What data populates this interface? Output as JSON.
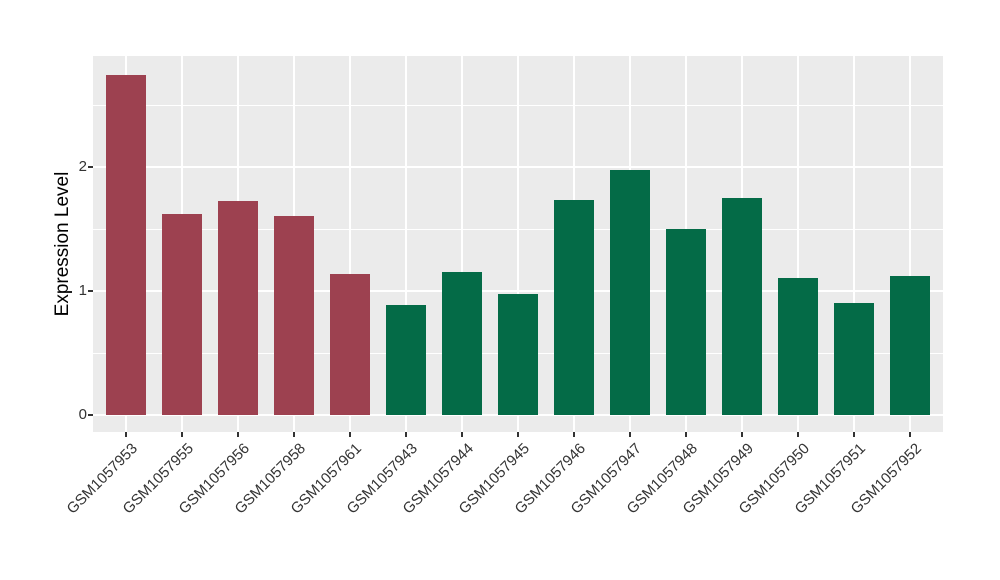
{
  "chart_data": {
    "type": "bar",
    "title": "",
    "xlabel": "",
    "ylabel": "Expression Level",
    "categories": [
      "GSM1057953",
      "GSM1057955",
      "GSM1057956",
      "GSM1057958",
      "GSM1057961",
      "GSM1057943",
      "GSM1057944",
      "GSM1057945",
      "GSM1057946",
      "GSM1057947",
      "GSM1057948",
      "GSM1057949",
      "GSM1057950",
      "GSM1057951",
      "GSM1057952"
    ],
    "values": [
      2.74,
      1.62,
      1.72,
      1.6,
      1.13,
      0.88,
      1.15,
      0.97,
      1.73,
      1.97,
      1.5,
      1.75,
      1.1,
      0.9,
      1.12
    ],
    "bar_colors": [
      "#9d4150",
      "#9d4150",
      "#9d4150",
      "#9d4150",
      "#9d4150",
      "#046b47",
      "#046b47",
      "#046b47",
      "#046b47",
      "#046b47",
      "#046b47",
      "#046b47",
      "#046b47",
      "#046b47",
      "#046b47"
    ],
    "yticks": [
      0,
      1,
      2
    ],
    "minor_gridlines": [
      0.5,
      1.5,
      2.5
    ],
    "ylim": [
      -0.14,
      2.89
    ],
    "grid": true,
    "legend_position": "none",
    "colors": {
      "group_red": "#9d4150",
      "group_green": "#046b47",
      "panel_background": "#ebebeb",
      "gridline": "#ffffff",
      "axis_text": "#333333",
      "axis_title": "#000000",
      "page_background": "#ffffff"
    }
  }
}
